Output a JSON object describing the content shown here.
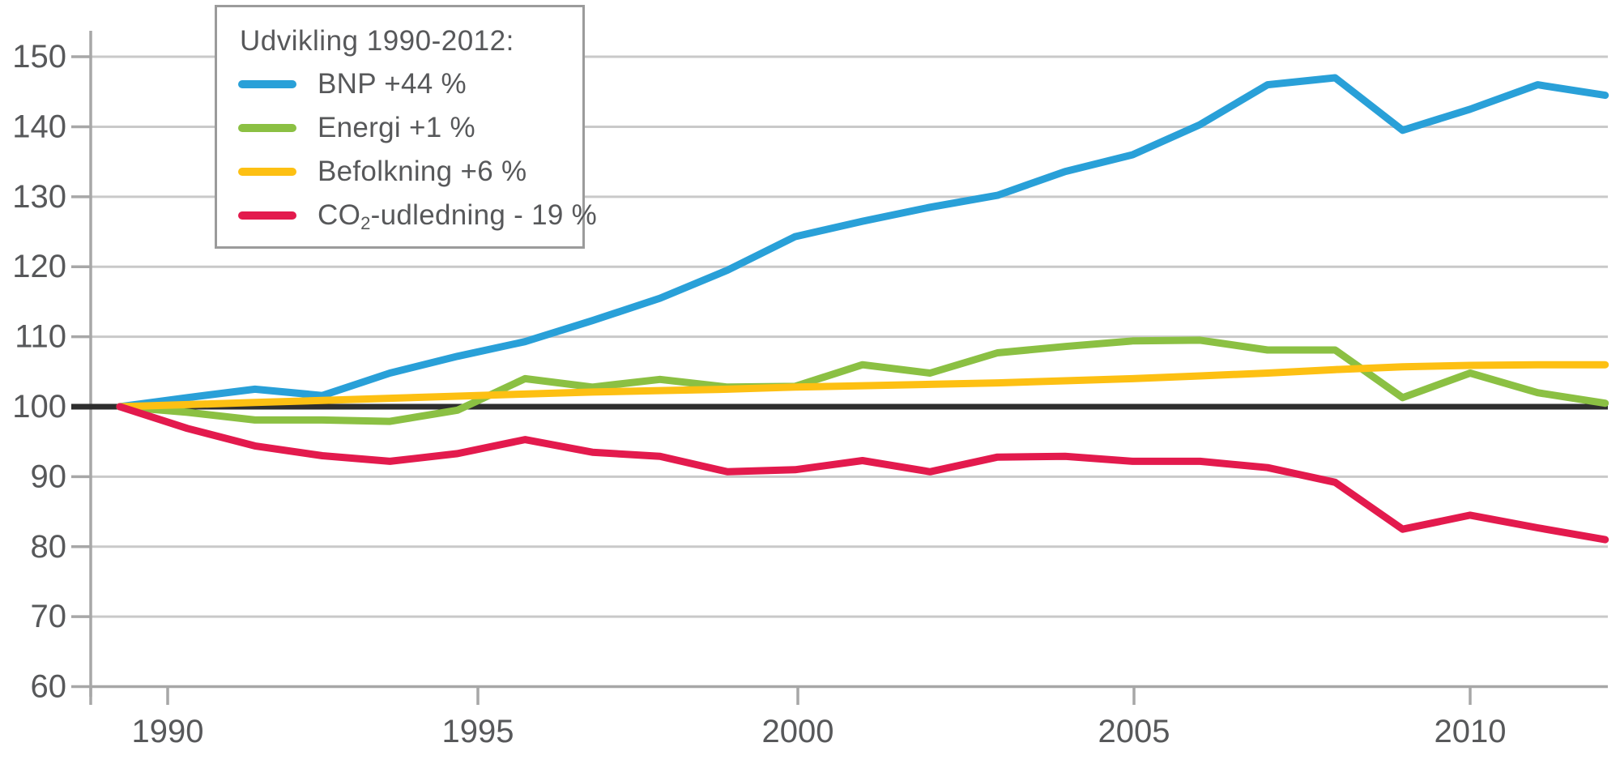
{
  "chart_data": {
    "type": "line",
    "title": "",
    "legend_title": "Udvikling 1990-2012:",
    "legend_position": "top-left",
    "grid": true,
    "baseline_value": 100,
    "x_label": "",
    "y_label": "",
    "ylim": [
      60,
      150
    ],
    "y_ticks": [
      150,
      140,
      130,
      120,
      110,
      100,
      90,
      80,
      70,
      60
    ],
    "x_tick_years": [
      1990,
      1995,
      2000,
      2005,
      2010
    ],
    "x_tick_labels": [
      "1990",
      "1995",
      "2000",
      "2005",
      "2010"
    ],
    "x": [
      1990,
      1991,
      1992,
      1993,
      1994,
      1995,
      1996,
      1997,
      1998,
      1999,
      2000,
      2001,
      2002,
      2003,
      2004,
      2005,
      2006,
      2007,
      2008,
      2009,
      2010,
      2011,
      2012
    ],
    "series": [
      {
        "name": "BNP",
        "color": "#29A0D8",
        "legend_parts": [
          {
            "text": "BNP +44 %"
          }
        ],
        "values": [
          100,
          101.3,
          102.5,
          101.6,
          104.8,
          107.2,
          109.3,
          112.3,
          115.5,
          119.5,
          124.3,
          126.5,
          128.5,
          130.2,
          133.6,
          136,
          140.3,
          146,
          147,
          139.5,
          142.5,
          146,
          144.5
        ]
      },
      {
        "name": "Energi",
        "color": "#8BC043",
        "legend_parts": [
          {
            "text": "Energi +1 %"
          }
        ],
        "values": [
          100,
          99.2,
          98.1,
          98.1,
          97.9,
          99.5,
          104,
          102.8,
          103.9,
          102.8,
          102.9,
          106,
          104.8,
          107.7,
          108.6,
          109.4,
          109.5,
          108.1,
          108.1,
          101.3,
          104.8,
          102,
          100.5
        ]
      },
      {
        "name": "Befolkning",
        "color": "#FDC013",
        "legend_parts": [
          {
            "text": "Befolkning +6 %"
          }
        ],
        "values": [
          100,
          100.3,
          100.6,
          100.9,
          101.2,
          101.5,
          101.8,
          102.1,
          102.3,
          102.5,
          102.8,
          103,
          103.2,
          103.4,
          103.7,
          104,
          104.4,
          104.8,
          105.3,
          105.7,
          105.9,
          106,
          106
        ]
      },
      {
        "name": "CO2-udledning",
        "color": "#E31A4D",
        "legend_parts": [
          {
            "text": "CO"
          },
          {
            "text": "2",
            "sub": true
          },
          {
            "text": "-udledning - 19 %"
          }
        ],
        "values": [
          100,
          96.9,
          94.4,
          93,
          92.2,
          93.3,
          95.3,
          93.5,
          92.9,
          90.7,
          91,
          92.3,
          90.7,
          92.8,
          92.9,
          92.2,
          92.2,
          91.3,
          89.2,
          82.5,
          84.5,
          82.7,
          81
        ]
      }
    ]
  },
  "colors": {
    "grid": "#C9C9C9",
    "axis": "#A7A7A7",
    "baseline": "#2E2E2E",
    "tick_text": "#57585A",
    "legend_border": "#9B9B9B",
    "background": "#FFFFFF"
  }
}
